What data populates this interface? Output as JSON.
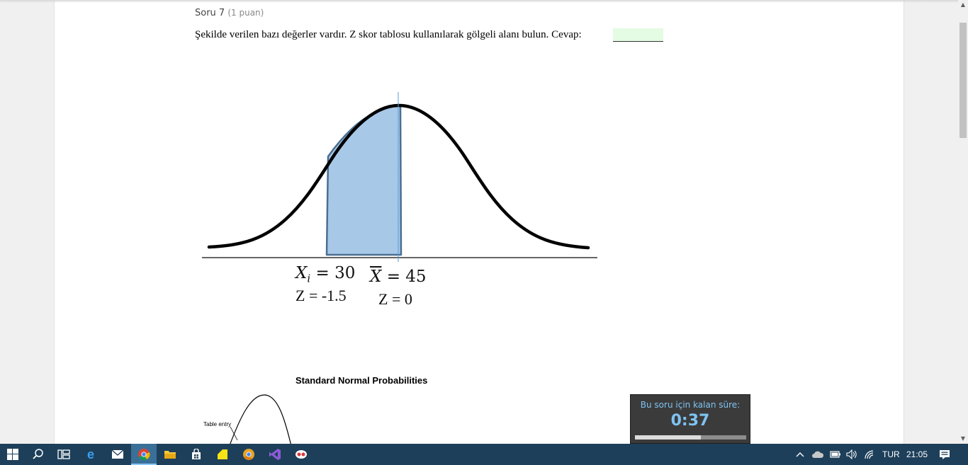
{
  "question": {
    "title": "Soru 7",
    "points": "(1 puan)",
    "text": "Şekilde verilen bazı değerler vardır. Z skor tablosu kullanılarak gölgeli alanı bulun. Cevap:",
    "answer_value": ""
  },
  "figure": {
    "xi_label": "X",
    "xi_sub": "i",
    "xi_value": "= 30",
    "z_left": "Z = -1.5",
    "xbar_label": "X",
    "xbar_value": "= 45",
    "z_right": "Z = 0",
    "shade_color": "#a8c8e8",
    "shade_stroke": "#4a6e92",
    "marker_color": "#5b9bd5"
  },
  "table": {
    "title": "Standard Normal Probabilities",
    "entry_label": "Table entry"
  },
  "timer": {
    "label": "Bu soru için kalan süre:",
    "value": "0:37",
    "remaining_fraction": 0.59,
    "color": "#7fc3f2"
  },
  "taskbar": {
    "apps": [
      "windows-start",
      "search",
      "task-view",
      "edge",
      "mail",
      "chrome",
      "file-explorer",
      "store",
      "sticky-notes",
      "chrome-canary",
      "visual-studio",
      "snipping-tool"
    ],
    "language": "TUR",
    "time": "21:05"
  }
}
